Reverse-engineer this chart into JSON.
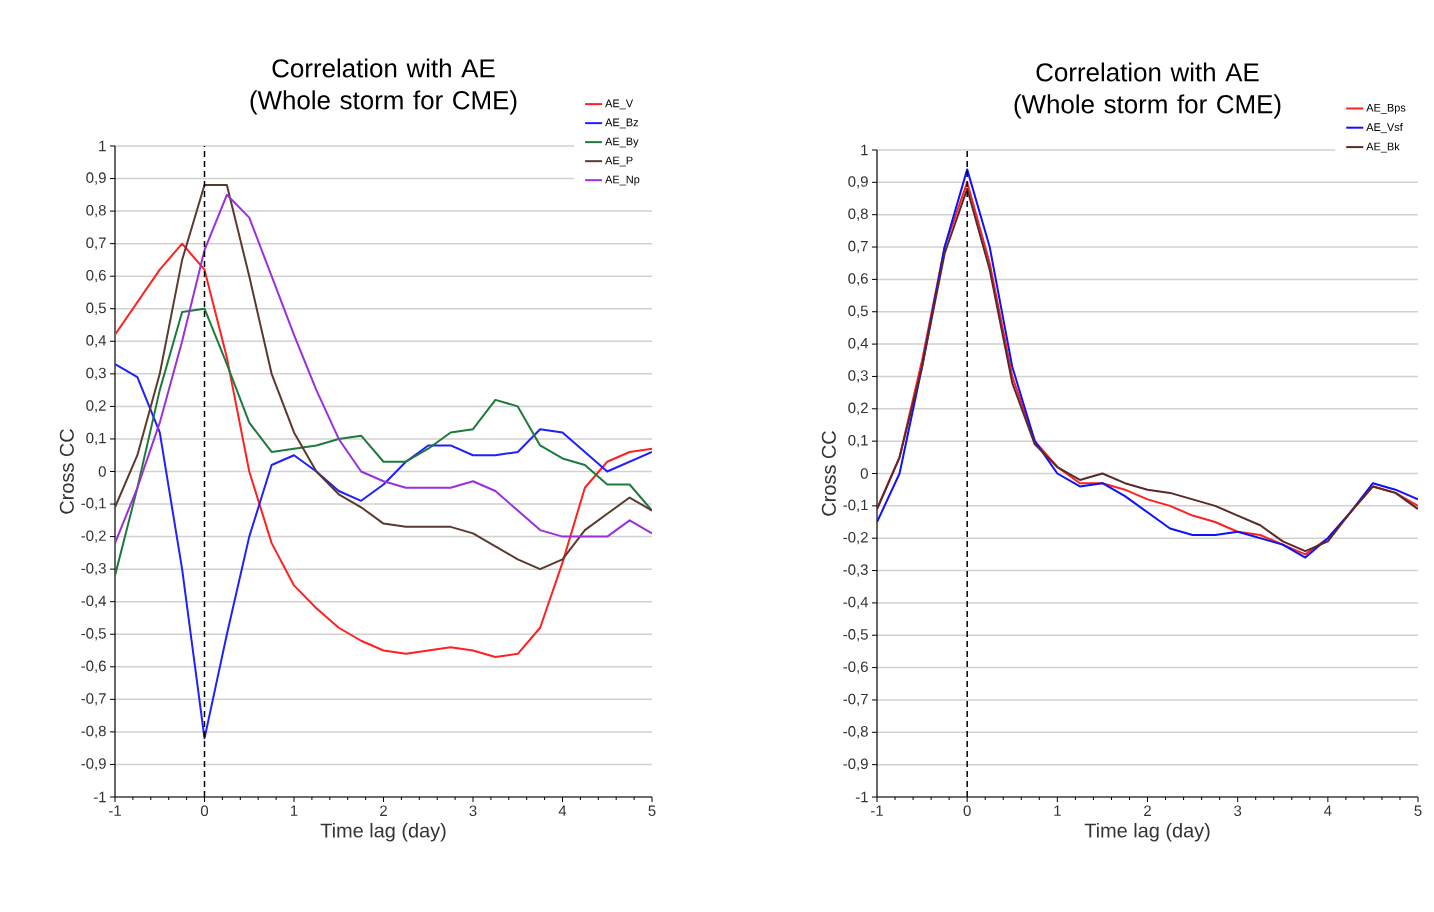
{
  "chart_data": [
    {
      "type": "line",
      "title": "Correlation with AE (Whole storm for CME)",
      "xlabel": "Time lag (day)",
      "ylabel": "Cross CC",
      "xlim": [
        -1,
        5
      ],
      "xticks": [
        -1,
        0,
        1,
        2,
        3,
        4,
        5
      ],
      "ylim": [
        -1,
        1
      ],
      "yticks": [
        -1,
        {
          "value": -0.9,
          "label": "-0,9"
        },
        {
          "value": -0.8,
          "label": "-0,8"
        },
        {
          "value": -0.7,
          "label": "-0,7"
        },
        {
          "value": -0.6,
          "label": "-0,6"
        },
        {
          "value": -0.5,
          "label": "-0,5"
        },
        {
          "value": -0.4,
          "label": "-0,4"
        },
        {
          "value": -0.3,
          "label": "-0,3"
        },
        {
          "value": -0.2,
          "label": "-0,2"
        },
        {
          "value": -0.1,
          "label": "-0,1"
        },
        0,
        {
          "value": 0.1,
          "label": "0,1"
        },
        {
          "value": 0.2,
          "label": "0,2"
        },
        {
          "value": 0.3,
          "label": "0,3"
        },
        {
          "value": 0.4,
          "label": "0,4"
        },
        {
          "value": 0.5,
          "label": "0,5"
        },
        {
          "value": 0.6,
          "label": "0,6"
        },
        {
          "value": 0.7,
          "label": "0,7"
        },
        {
          "value": 0.8,
          "label": "0,8"
        },
        {
          "value": 0.9,
          "label": "0,9"
        },
        1
      ],
      "grid": "y",
      "legend": "top right",
      "marker": "none",
      "line_style": "solid",
      "x": [
        -1,
        -0.75,
        -0.5,
        -0.25,
        0,
        0.25,
        0.5,
        0.75,
        1,
        1.25,
        1.5,
        1.75,
        2,
        2.25,
        2.5,
        2.75,
        3,
        3.25,
        3.5,
        3.75,
        4,
        4.25,
        4.5,
        4.75,
        5
      ],
      "ref_lines": [
        {
          "axis": "x",
          "value": 0,
          "color": "#000000",
          "line_style": "dashed"
        }
      ],
      "series": [
        {
          "name": "AE_V",
          "color": "#ff2020",
          "values": [
            0.42,
            0.52,
            0.62,
            0.7,
            0.62,
            0.35,
            0.0,
            -0.22,
            -0.35,
            -0.42,
            -0.48,
            -0.52,
            -0.55,
            -0.56,
            -0.55,
            -0.54,
            -0.55,
            -0.57,
            -0.56,
            -0.48,
            -0.28,
            -0.05,
            0.03,
            0.06,
            0.07
          ]
        },
        {
          "name": "AE_Bz",
          "color": "#1f1fff",
          "values": [
            0.33,
            0.29,
            0.12,
            -0.3,
            -0.82,
            -0.5,
            -0.2,
            0.02,
            0.05,
            0.0,
            -0.06,
            -0.09,
            -0.04,
            0.03,
            0.08,
            0.08,
            0.05,
            0.05,
            0.06,
            0.13,
            0.12,
            0.06,
            0.0,
            0.03,
            0.06
          ]
        },
        {
          "name": "AE_By",
          "color": "#1e7a3c",
          "values": [
            -0.32,
            -0.05,
            0.25,
            0.49,
            0.5,
            0.33,
            0.15,
            0.06,
            0.07,
            0.08,
            0.1,
            0.11,
            0.03,
            0.03,
            0.07,
            0.12,
            0.13,
            0.22,
            0.2,
            0.08,
            0.04,
            0.02,
            -0.04,
            -0.04,
            -0.12
          ]
        },
        {
          "name": "AE_P",
          "color": "#5a3a2e",
          "values": [
            -0.11,
            0.05,
            0.3,
            0.65,
            0.88,
            0.88,
            0.6,
            0.3,
            0.12,
            0.0,
            -0.07,
            -0.11,
            -0.16,
            -0.17,
            -0.17,
            -0.17,
            -0.19,
            -0.23,
            -0.27,
            -0.3,
            -0.27,
            -0.18,
            -0.13,
            -0.08,
            -0.12
          ]
        },
        {
          "name": "AE_Np",
          "color": "#9b30d9",
          "values": [
            -0.22,
            -0.05,
            0.15,
            0.4,
            0.68,
            0.85,
            0.78,
            0.6,
            0.42,
            0.25,
            0.1,
            0.0,
            -0.03,
            -0.05,
            -0.05,
            -0.05,
            -0.03,
            -0.06,
            -0.12,
            -0.18,
            -0.2,
            -0.2,
            -0.2,
            -0.15,
            -0.19
          ]
        }
      ]
    },
    {
      "type": "line",
      "title": "Correlation with AE (Whole storm for CME)",
      "xlabel": "Time lag (day)",
      "ylabel": "Cross CC",
      "xlim": [
        -1,
        5
      ],
      "xticks": [
        -1,
        0,
        1,
        2,
        3,
        4,
        5
      ],
      "ylim": [
        -1,
        1
      ],
      "yticks": [
        -1,
        {
          "value": -0.9,
          "label": "-0,9"
        },
        {
          "value": -0.8,
          "label": "-0,8"
        },
        {
          "value": -0.7,
          "label": "-0,7"
        },
        {
          "value": -0.6,
          "label": "-0,6"
        },
        {
          "value": -0.5,
          "label": "-0,5"
        },
        {
          "value": -0.4,
          "label": "-0,4"
        },
        {
          "value": -0.3,
          "label": "-0,3"
        },
        {
          "value": -0.2,
          "label": "-0,2"
        },
        {
          "value": -0.1,
          "label": "-0,1"
        },
        0,
        {
          "value": 0.1,
          "label": "0,1"
        },
        {
          "value": 0.2,
          "label": "0,2"
        },
        {
          "value": 0.3,
          "label": "0,3"
        },
        {
          "value": 0.4,
          "label": "0,4"
        },
        {
          "value": 0.5,
          "label": "0,5"
        },
        {
          "value": 0.6,
          "label": "0,6"
        },
        {
          "value": 0.7,
          "label": "0,7"
        },
        {
          "value": 0.8,
          "label": "0,8"
        },
        {
          "value": 0.9,
          "label": "0,9"
        },
        1
      ],
      "grid": "y",
      "legend": "top right",
      "marker": "none",
      "line_style": "solid",
      "x": [
        -1,
        -0.75,
        -0.5,
        -0.25,
        0,
        0.25,
        0.5,
        0.75,
        1,
        1.25,
        1.5,
        1.75,
        2,
        2.25,
        2.5,
        2.75,
        3,
        3.25,
        3.5,
        3.75,
        4,
        4.25,
        4.5,
        4.75,
        5
      ],
      "ref_lines": [
        {
          "axis": "x",
          "value": 0,
          "color": "#000000",
          "line_style": "dashed"
        }
      ],
      "series": [
        {
          "name": "AE_Bps",
          "color": "#ff2020",
          "values": [
            -0.11,
            0.05,
            0.35,
            0.7,
            0.9,
            0.65,
            0.3,
            0.1,
            0.02,
            -0.03,
            -0.03,
            -0.05,
            -0.08,
            -0.1,
            -0.13,
            -0.15,
            -0.18,
            -0.19,
            -0.22,
            -0.25,
            -0.2,
            -0.12,
            -0.04,
            -0.06,
            -0.1
          ]
        },
        {
          "name": "AE_Vsf",
          "color": "#1010ff",
          "values": [
            -0.15,
            0.0,
            0.33,
            0.7,
            0.94,
            0.7,
            0.33,
            0.1,
            0.0,
            -0.04,
            -0.03,
            -0.07,
            -0.12,
            -0.17,
            -0.19,
            -0.19,
            -0.18,
            -0.2,
            -0.22,
            -0.26,
            -0.2,
            -0.12,
            -0.03,
            -0.05,
            -0.08
          ]
        },
        {
          "name": "AE_Bk",
          "color": "#5a2a2a",
          "values": [
            -0.11,
            0.05,
            0.33,
            0.68,
            0.88,
            0.63,
            0.28,
            0.09,
            0.02,
            -0.02,
            0.0,
            -0.03,
            -0.05,
            -0.06,
            -0.08,
            -0.1,
            -0.13,
            -0.16,
            -0.21,
            -0.24,
            -0.21,
            -0.12,
            -0.04,
            -0.06,
            -0.11
          ]
        }
      ]
    }
  ]
}
